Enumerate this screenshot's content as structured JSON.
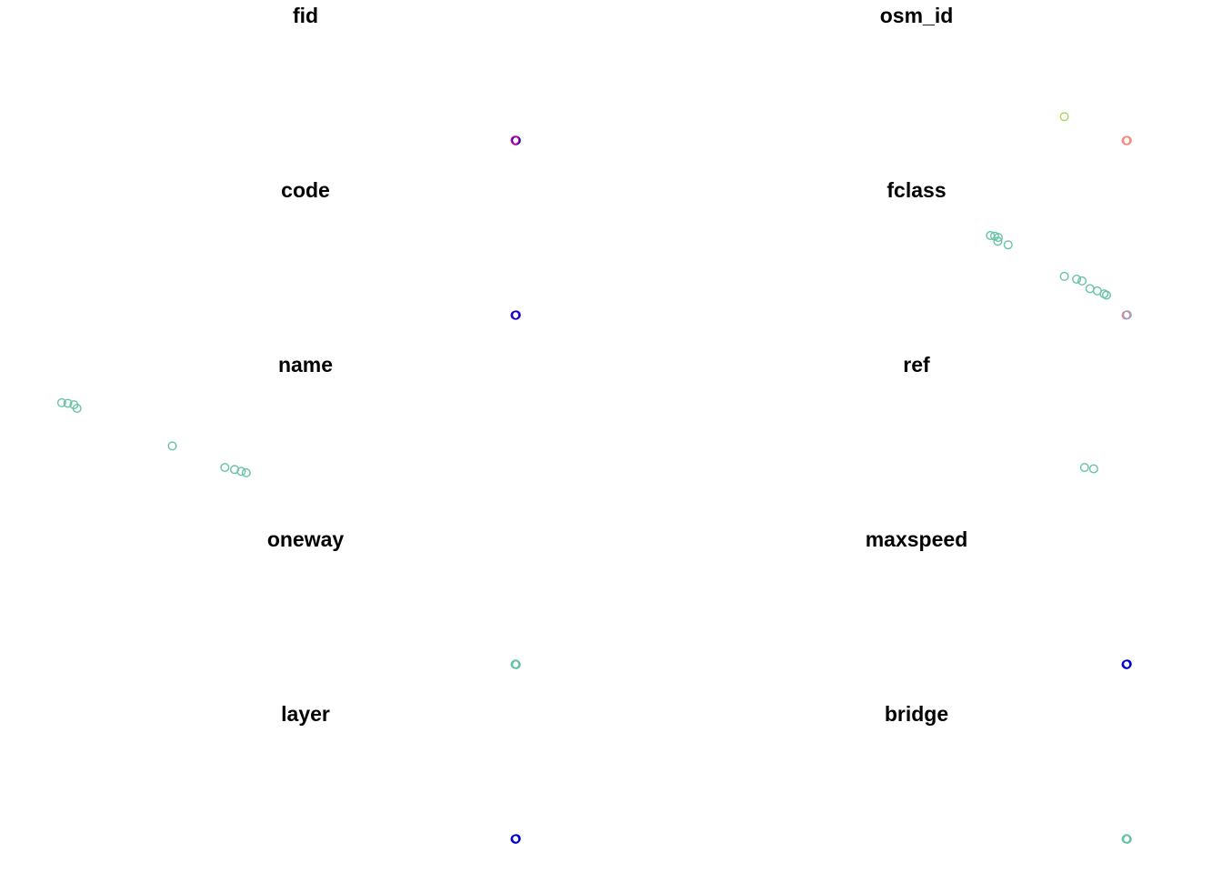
{
  "chart_data": {
    "type": "scatter",
    "layout": "5 rows x 2 columns of small-multiple point maps",
    "axes_shown": false,
    "grid": false,
    "legend": "none",
    "marker": "open-circle",
    "panels": [
      {
        "title": "fid",
        "points": [
          {
            "x": 0.843,
            "y": 0.195,
            "color": "#FFFF00"
          },
          {
            "x": 0.844,
            "y": 0.194,
            "color": "#9000C0"
          },
          {
            "x": 0.845,
            "y": 0.196,
            "color": "#0000C8"
          },
          {
            "x": 0.843,
            "y": 0.197,
            "color": "#D000A0"
          }
        ]
      },
      {
        "title": "osm_id",
        "points": [
          {
            "x": 0.742,
            "y": 0.332,
            "color": "#A6D854"
          },
          {
            "x": 0.843,
            "y": 0.195,
            "color": "#F08080"
          },
          {
            "x": 0.844,
            "y": 0.194,
            "color": "#E78AC3"
          },
          {
            "x": 0.845,
            "y": 0.196,
            "color": "#FC8D62"
          }
        ]
      },
      {
        "title": "code",
        "points": [
          {
            "x": 0.843,
            "y": 0.195,
            "color": "#0000C8"
          },
          {
            "x": 0.844,
            "y": 0.194,
            "color": "#8000C0"
          },
          {
            "x": 0.845,
            "y": 0.196,
            "color": "#0000C8"
          }
        ]
      },
      {
        "title": "fclass",
        "points": [
          {
            "x": 0.621,
            "y": 0.651,
            "color": "#66C2A5"
          },
          {
            "x": 0.628,
            "y": 0.648,
            "color": "#66C2A5"
          },
          {
            "x": 0.634,
            "y": 0.64,
            "color": "#66C2A5"
          },
          {
            "x": 0.633,
            "y": 0.618,
            "color": "#66C2A5"
          },
          {
            "x": 0.65,
            "y": 0.598,
            "color": "#66C2A5"
          },
          {
            "x": 0.742,
            "y": 0.417,
            "color": "#66C2A5"
          },
          {
            "x": 0.762,
            "y": 0.401,
            "color": "#66C2A5"
          },
          {
            "x": 0.771,
            "y": 0.391,
            "color": "#66C2A5"
          },
          {
            "x": 0.784,
            "y": 0.347,
            "color": "#66C2A5"
          },
          {
            "x": 0.796,
            "y": 0.334,
            "color": "#66C2A5"
          },
          {
            "x": 0.807,
            "y": 0.317,
            "color": "#66C2A5"
          },
          {
            "x": 0.811,
            "y": 0.31,
            "color": "#66C2A5"
          },
          {
            "x": 0.843,
            "y": 0.195,
            "color": "#F08080"
          },
          {
            "x": 0.845,
            "y": 0.197,
            "color": "#8DA0CB"
          }
        ]
      },
      {
        "title": "name",
        "points": [
          {
            "x": 0.101,
            "y": 0.693,
            "color": "#66C2A5"
          },
          {
            "x": 0.111,
            "y": 0.69,
            "color": "#66C2A5"
          },
          {
            "x": 0.121,
            "y": 0.682,
            "color": "#66C2A5"
          },
          {
            "x": 0.126,
            "y": 0.661,
            "color": "#66C2A5"
          },
          {
            "x": 0.282,
            "y": 0.446,
            "color": "#66C2A5"
          },
          {
            "x": 0.368,
            "y": 0.323,
            "color": "#66C2A5"
          },
          {
            "x": 0.384,
            "y": 0.311,
            "color": "#66C2A5"
          },
          {
            "x": 0.395,
            "y": 0.3,
            "color": "#66C2A5"
          },
          {
            "x": 0.403,
            "y": 0.292,
            "color": "#66C2A5"
          }
        ]
      },
      {
        "title": "ref",
        "points": [
          {
            "x": 0.775,
            "y": 0.323,
            "color": "#66C2A5"
          },
          {
            "x": 0.79,
            "y": 0.315,
            "color": "#66C2A5"
          }
        ]
      },
      {
        "title": "oneway",
        "points": [
          {
            "x": 0.843,
            "y": 0.195,
            "color": "#66C2A5"
          },
          {
            "x": 0.845,
            "y": 0.193,
            "color": "#66C2A5"
          },
          {
            "x": 0.844,
            "y": 0.197,
            "color": "#66C2A5"
          }
        ]
      },
      {
        "title": "maxspeed",
        "points": [
          {
            "x": 0.843,
            "y": 0.195,
            "color": "#0000C8"
          },
          {
            "x": 0.845,
            "y": 0.197,
            "color": "#0000C8"
          },
          {
            "x": 0.844,
            "y": 0.193,
            "color": "#0000C8"
          }
        ]
      },
      {
        "title": "layer",
        "points": [
          {
            "x": 0.843,
            "y": 0.195,
            "color": "#0000C8"
          },
          {
            "x": 0.845,
            "y": 0.197,
            "color": "#0000C8"
          },
          {
            "x": 0.844,
            "y": 0.193,
            "color": "#0000C8"
          }
        ]
      },
      {
        "title": "bridge",
        "points": [
          {
            "x": 0.843,
            "y": 0.195,
            "color": "#66C2A5"
          },
          {
            "x": 0.845,
            "y": 0.193,
            "color": "#66C2A5"
          },
          {
            "x": 0.844,
            "y": 0.197,
            "color": "#66C2A5"
          }
        ]
      }
    ]
  }
}
